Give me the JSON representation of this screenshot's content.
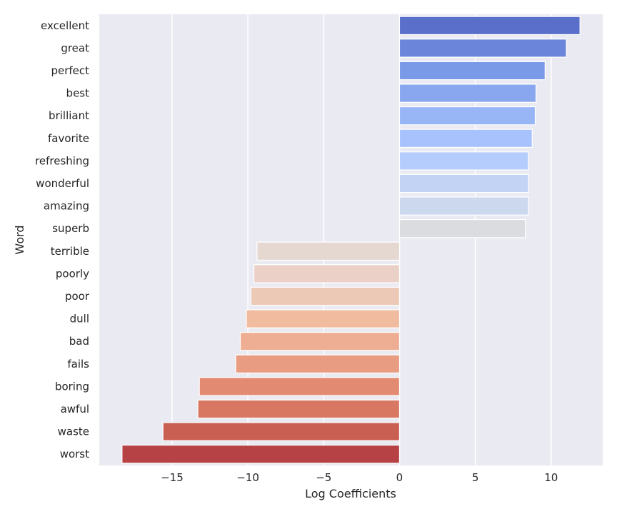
{
  "chart_data": {
    "type": "bar",
    "orientation": "horizontal",
    "xlabel": "Log Coefficients",
    "ylabel": "Word",
    "xlim": [
      -19.8,
      13.4
    ],
    "xticks": [
      -15,
      -10,
      -5,
      0,
      5,
      10
    ],
    "xtick_labels": [
      "−15",
      "−10",
      "−5",
      "0",
      "5",
      "10"
    ],
    "grid": true,
    "palette": "coolwarm",
    "background": "#eaeaf2",
    "categories": [
      "excellent",
      "great",
      "perfect",
      "best",
      "brilliant",
      "favorite",
      "refreshing",
      "wonderful",
      "amazing",
      "superb",
      "terrible",
      "poorly",
      "poor",
      "dull",
      "bad",
      "fails",
      "boring",
      "awful",
      "waste",
      "worst"
    ],
    "values": [
      11.9,
      11.0,
      9.6,
      9.0,
      8.95,
      8.75,
      8.5,
      8.5,
      8.5,
      8.3,
      -9.4,
      -9.6,
      -9.8,
      -10.1,
      -10.5,
      -10.8,
      -13.2,
      -13.3,
      -15.6,
      -18.3
    ],
    "colors": [
      "#5a6fc9",
      "#6a85da",
      "#7a99e6",
      "#89a7ee",
      "#98b5f6",
      "#a7c2fc",
      "#b4cdfc",
      "#c2d3f3",
      "#ccd8ed",
      "#dadce0",
      "#e5d8d1",
      "#ebd0c7",
      "#ecc9b7",
      "#f1bb9f",
      "#eeae93",
      "#e89c82",
      "#e38b72",
      "#d97862",
      "#c95f53",
      "#b64245"
    ]
  }
}
